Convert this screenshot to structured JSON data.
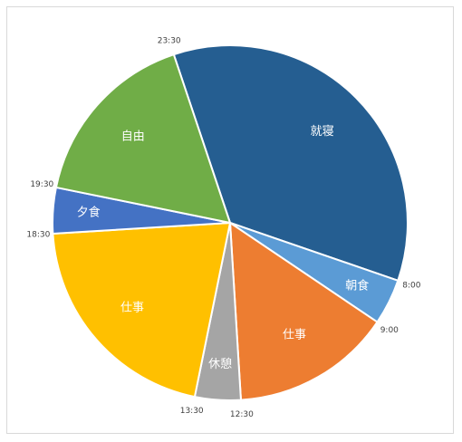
{
  "chart_data": {
    "type": "pie",
    "title": "",
    "slices": [
      {
        "label": "就寝",
        "start": "23:30",
        "end": "8:00",
        "hours": 8.5,
        "color": "#255e91"
      },
      {
        "label": "朝食",
        "start": "8:00",
        "end": "9:00",
        "hours": 1.0,
        "color": "#5b9bd5"
      },
      {
        "label": "仕事",
        "start": "9:00",
        "end": "12:30",
        "hours": 3.5,
        "color": "#ed7d31"
      },
      {
        "label": "休憩",
        "start": "12:30",
        "end": "13:30",
        "hours": 1.0,
        "color": "#a5a5a5"
      },
      {
        "label": "仕事",
        "start": "13:30",
        "end": "18:30",
        "hours": 5.0,
        "color": "#ffc000"
      },
      {
        "label": "夕食",
        "start": "18:30",
        "end": "19:30",
        "hours": 1.0,
        "color": "#4472c4"
      },
      {
        "label": "自由",
        "start": "19:30",
        "end": "23:30",
        "hours": 4.0,
        "color": "#70ad47"
      }
    ],
    "boundary_labels": [
      "23:30",
      "8:00",
      "9:00",
      "12:30",
      "13:30",
      "18:30",
      "19:30"
    ]
  }
}
